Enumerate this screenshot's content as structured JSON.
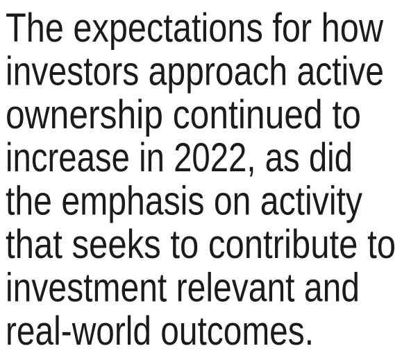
{
  "paragraph": {
    "lines": [
      "The expectations for how",
      "investors approach active",
      "ownership continued to",
      "increase in 2022, as did",
      "the emphasis on activity",
      "that seeks to contribute to",
      "investment relevant and",
      "real-world outcomes."
    ]
  }
}
